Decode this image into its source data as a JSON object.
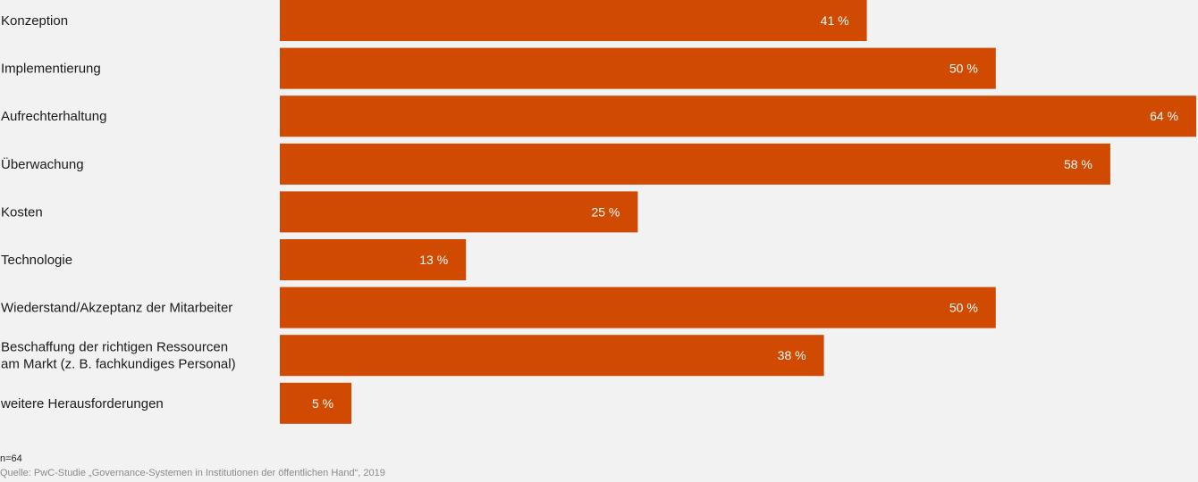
{
  "colors": {
    "background": "#f2f2f2",
    "bar": "#d04a02",
    "bar_label": "#ffffff",
    "text": "#1a1a1a",
    "source_text": "#8a8a8a"
  },
  "chart_data": {
    "type": "bar",
    "orientation": "horizontal",
    "categories": [
      [
        "Konzeption"
      ],
      [
        "Implementierung"
      ],
      [
        "Aufrechterhaltung"
      ],
      [
        "Überwachung"
      ],
      [
        "Kosten"
      ],
      [
        "Technologie"
      ],
      [
        "Wiederstand/Akzeptanz der Mitarbeiter"
      ],
      [
        "Beschaffung der richtigen Ressourcen",
        "am Markt (z. B. fachkundiges Personal)"
      ],
      [
        "weitere Herausforderungen"
      ]
    ],
    "values": [
      41,
      50,
      64,
      58,
      25,
      13,
      50,
      38,
      5
    ],
    "value_labels": [
      "41 %",
      "50 %",
      "64 %",
      "58 %",
      "25 %",
      "13 %",
      "50 %",
      "38 %",
      "5 %"
    ],
    "unit": "%",
    "xlim": [
      0,
      64
    ],
    "grid": false,
    "legend": "none"
  },
  "footer": {
    "sample_size": "n=64",
    "source": "Quelle: PwC-Studie „Governance-Systemen in Institutionen der öffentlichen Hand“, 2019"
  }
}
